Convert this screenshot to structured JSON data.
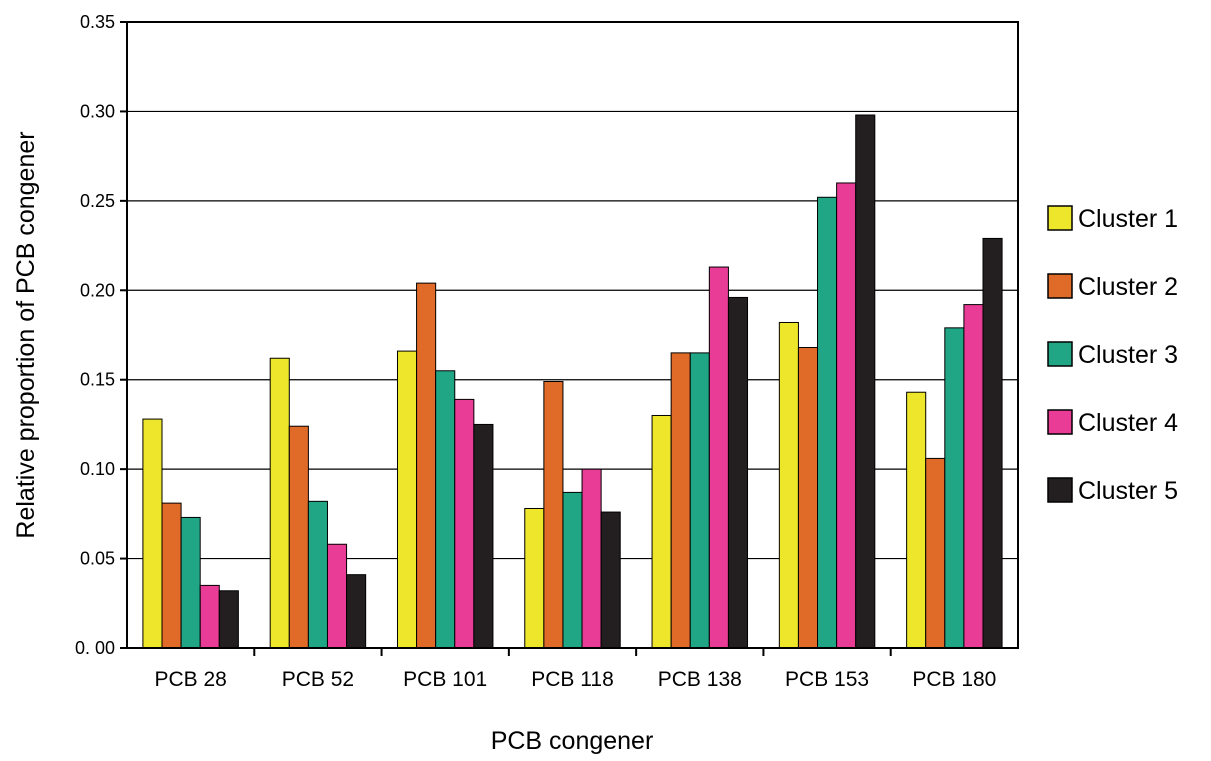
{
  "chart_data": {
    "type": "bar",
    "title": "",
    "xlabel": "PCB congener",
    "ylabel": "Relative proportion of PCB congener",
    "ylim": [
      0,
      0.35
    ],
    "yticks": [
      0,
      0.05,
      0.1,
      0.15,
      0.2,
      0.25,
      0.3,
      0.35
    ],
    "ytick_labels": [
      "0. 00",
      "0.05",
      "0.10",
      "0.15",
      "0.20",
      "0.25",
      "0.30",
      "0.35"
    ],
    "grid": "horizontal",
    "legend_position": "right",
    "categories": [
      "PCB 28",
      "PCB 52",
      "PCB 101",
      "PCB 118",
      "PCB 138",
      "PCB 153",
      "PCB 180"
    ],
    "series": [
      {
        "name": "Cluster 1",
        "color": "#ede62a",
        "values": [
          0.128,
          0.162,
          0.166,
          0.078,
          0.13,
          0.182,
          0.143
        ]
      },
      {
        "name": "Cluster 2",
        "color": "#e06a28",
        "values": [
          0.081,
          0.124,
          0.204,
          0.149,
          0.165,
          0.168,
          0.106
        ]
      },
      {
        "name": "Cluster 3",
        "color": "#20a585",
        "values": [
          0.073,
          0.082,
          0.155,
          0.087,
          0.165,
          0.252,
          0.179
        ]
      },
      {
        "name": "Cluster 4",
        "color": "#e93c96",
        "values": [
          0.035,
          0.058,
          0.139,
          0.1,
          0.213,
          0.26,
          0.192
        ]
      },
      {
        "name": "Cluster 5",
        "color": "#231f20",
        "values": [
          0.032,
          0.041,
          0.125,
          0.076,
          0.196,
          0.298,
          0.229
        ]
      }
    ]
  }
}
